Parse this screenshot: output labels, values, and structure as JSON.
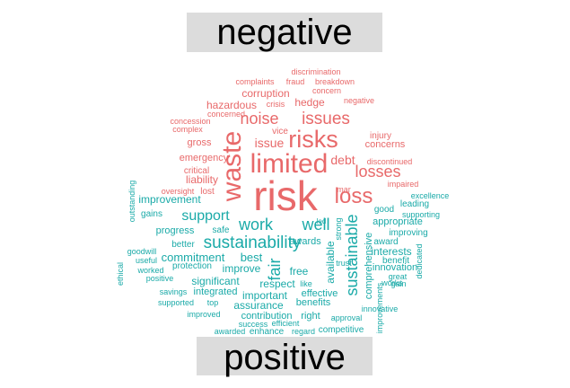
{
  "groups": {
    "negative": "negative",
    "positive": "positive"
  },
  "colors": {
    "negative": "#e8696a",
    "positive": "#1aaaa8"
  },
  "words": [
    {
      "t": "discrimination",
      "g": "n"
    },
    {
      "t": "complaints",
      "g": "n"
    },
    {
      "t": "fraud",
      "g": "n"
    },
    {
      "t": "breakdown",
      "g": "n"
    },
    {
      "t": "corruption",
      "g": "n"
    },
    {
      "t": "concern",
      "g": "n"
    },
    {
      "t": "hazardous",
      "g": "n"
    },
    {
      "t": "crisis",
      "g": "n"
    },
    {
      "t": "hedge",
      "g": "n"
    },
    {
      "t": "negative",
      "g": "n"
    },
    {
      "t": "concerned",
      "g": "n"
    },
    {
      "t": "noise",
      "g": "n"
    },
    {
      "t": "issues",
      "g": "n"
    },
    {
      "t": "concession",
      "g": "n"
    },
    {
      "t": "complex",
      "g": "n"
    },
    {
      "t": "vice",
      "g": "n"
    },
    {
      "t": "injury",
      "g": "n"
    },
    {
      "t": "risks",
      "g": "n"
    },
    {
      "t": "gross",
      "g": "n"
    },
    {
      "t": "issue",
      "g": "n"
    },
    {
      "t": "concerns",
      "g": "n"
    },
    {
      "t": "waste",
      "g": "n"
    },
    {
      "t": "limited",
      "g": "n"
    },
    {
      "t": "emergency",
      "g": "n"
    },
    {
      "t": "debt",
      "g": "n"
    },
    {
      "t": "discontinued",
      "g": "n"
    },
    {
      "t": "critical",
      "g": "n"
    },
    {
      "t": "losses",
      "g": "n"
    },
    {
      "t": "liability",
      "g": "n"
    },
    {
      "t": "oversight",
      "g": "n"
    },
    {
      "t": "lost",
      "g": "n"
    },
    {
      "t": "mar",
      "g": "n"
    },
    {
      "t": "impaired",
      "g": "n"
    },
    {
      "t": "risk",
      "g": "n"
    },
    {
      "t": "loss",
      "g": "n"
    },
    {
      "t": "outstanding",
      "g": "p"
    },
    {
      "t": "excellence",
      "g": "p"
    },
    {
      "t": "improvement",
      "g": "p"
    },
    {
      "t": "leading",
      "g": "p"
    },
    {
      "t": "gains",
      "g": "p"
    },
    {
      "t": "good",
      "g": "p"
    },
    {
      "t": "supporting",
      "g": "p"
    },
    {
      "t": "support",
      "g": "p"
    },
    {
      "t": "work",
      "g": "p"
    },
    {
      "t": "led",
      "g": "p"
    },
    {
      "t": "strong",
      "g": "p"
    },
    {
      "t": "well",
      "g": "p"
    },
    {
      "t": "appropriate",
      "g": "p"
    },
    {
      "t": "progress",
      "g": "p"
    },
    {
      "t": "safe",
      "g": "p"
    },
    {
      "t": "improving",
      "g": "p"
    },
    {
      "t": "sustainability",
      "g": "p"
    },
    {
      "t": "awards",
      "g": "p"
    },
    {
      "t": "available",
      "g": "p"
    },
    {
      "t": "sustainable",
      "g": "p"
    },
    {
      "t": "award",
      "g": "p"
    },
    {
      "t": "better",
      "g": "p"
    },
    {
      "t": "interests",
      "g": "p"
    },
    {
      "t": "goodwill",
      "g": "p"
    },
    {
      "t": "commitment",
      "g": "p"
    },
    {
      "t": "best",
      "g": "p"
    },
    {
      "t": "comprehensive",
      "g": "p"
    },
    {
      "t": "benefit",
      "g": "p"
    },
    {
      "t": "useful",
      "g": "p"
    },
    {
      "t": "protection",
      "g": "p"
    },
    {
      "t": "fair",
      "g": "p"
    },
    {
      "t": "free",
      "g": "p"
    },
    {
      "t": "trust",
      "g": "p"
    },
    {
      "t": "innovation",
      "g": "p"
    },
    {
      "t": "ethical",
      "g": "p"
    },
    {
      "t": "dedicated",
      "g": "p"
    },
    {
      "t": "worked",
      "g": "p"
    },
    {
      "t": "improve",
      "g": "p"
    },
    {
      "t": "great",
      "g": "p"
    },
    {
      "t": "positive",
      "g": "p"
    },
    {
      "t": "significant",
      "g": "p"
    },
    {
      "t": "respect",
      "g": "p"
    },
    {
      "t": "like",
      "g": "p"
    },
    {
      "t": "works",
      "g": "p"
    },
    {
      "t": "gain",
      "g": "p"
    },
    {
      "t": "savings",
      "g": "p"
    },
    {
      "t": "integrated",
      "g": "p"
    },
    {
      "t": "effective",
      "g": "p"
    },
    {
      "t": "supported",
      "g": "p"
    },
    {
      "t": "top",
      "g": "p"
    },
    {
      "t": "important",
      "g": "p"
    },
    {
      "t": "benefits",
      "g": "p"
    },
    {
      "t": "innovative",
      "g": "p"
    },
    {
      "t": "assurance",
      "g": "p"
    },
    {
      "t": "improved",
      "g": "p"
    },
    {
      "t": "contribution",
      "g": "p"
    },
    {
      "t": "right",
      "g": "p"
    },
    {
      "t": "approval",
      "g": "p"
    },
    {
      "t": "improvements",
      "g": "p"
    },
    {
      "t": "success",
      "g": "p"
    },
    {
      "t": "efficient",
      "g": "p"
    },
    {
      "t": "awarded",
      "g": "p"
    },
    {
      "t": "enhance",
      "g": "p"
    },
    {
      "t": "regard",
      "g": "p"
    },
    {
      "t": "competitive",
      "g": "p"
    }
  ]
}
